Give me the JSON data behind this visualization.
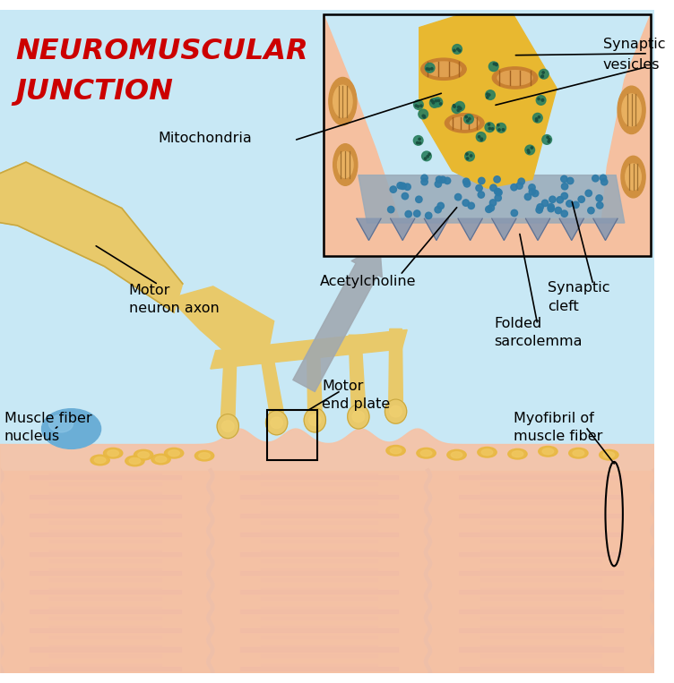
{
  "title_color": "#CC0000",
  "bg_color": "#FFFFFF",
  "fig_width": 7.52,
  "fig_height": 7.63,
  "dpi": 100,
  "light_blue_bg": "#C8E8F5",
  "pink_muscle_top": "#F5C4A8",
  "axon_color": "#E8C96A",
  "axon_dark": "#C9A840",
  "blue_dot_color": "#2E7BA8",
  "gray_cleft": "#9AAAB8",
  "nucleus_color": "#6BAED6",
  "muscle_stripe_dark": "#B03878",
  "muscle_stripe_mid": "#C05080",
  "muscle_border": "#7878B8",
  "sarcomere_bg": "#EE9070",
  "labels": {
    "title_line1": "NEUROMUSCULAR",
    "title_line2": "JUNCTION",
    "mitochondria": "Mitochondria",
    "synaptic_vesicles": "Synaptic\nvesicles",
    "acetylcholine": "Acetylcholine",
    "synaptic_cleft": "Synaptic\ncleft",
    "folded_sarcolemma": "Folded\nsarcolemma",
    "motor_neuron_axon": "Motor\nneuron axon",
    "motor_end_plate": "Motor\nend plate",
    "muscle_fiber_nucleus": "Muscle fiber\nnucleus",
    "myofibril": "Myofibril of\nmuscle fiber"
  }
}
